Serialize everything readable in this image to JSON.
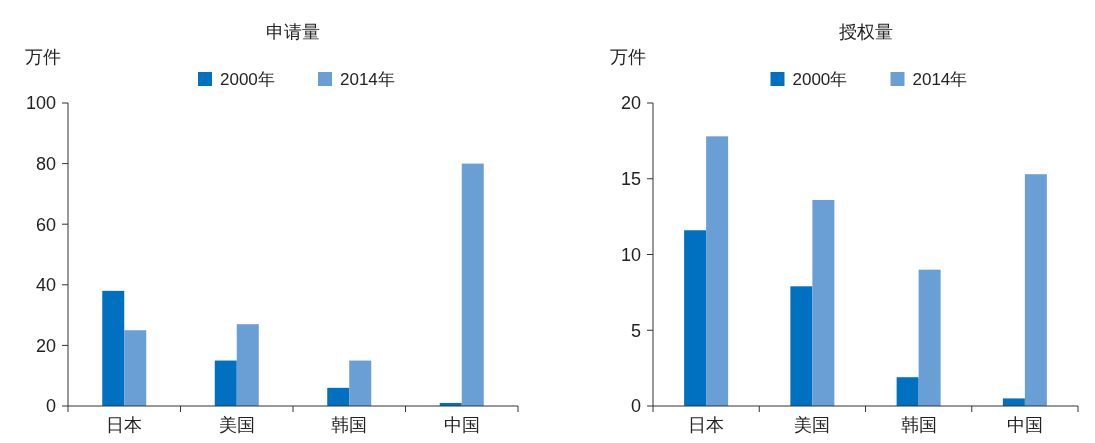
{
  "chart_data": [
    {
      "type": "bar",
      "title": "申请量",
      "ylabel": "万件",
      "categories": [
        "日本",
        "美国",
        "韩国",
        "中国"
      ],
      "series": [
        {
          "name": "2000年",
          "color": "#0070c0",
          "values": [
            38,
            15,
            6,
            1
          ]
        },
        {
          "name": "2014年",
          "color": "#6a9fd6",
          "values": [
            25,
            27,
            15,
            80
          ]
        }
      ],
      "ylim": [
        0,
        100
      ],
      "yticks": [
        0,
        20,
        40,
        60,
        80,
        100
      ],
      "legend": "top",
      "grid": false
    },
    {
      "type": "bar",
      "title": "授权量",
      "ylabel": "万件",
      "categories": [
        "日本",
        "美国",
        "韩国",
        "中国"
      ],
      "series": [
        {
          "name": "2000年",
          "color": "#0070c0",
          "values": [
            11.6,
            7.9,
            1.9,
            0.5
          ]
        },
        {
          "name": "2014年",
          "color": "#6a9fd6",
          "values": [
            17.8,
            13.6,
            9.0,
            15.3
          ]
        }
      ],
      "ylim": [
        0,
        20
      ],
      "yticks": [
        0,
        5,
        10,
        15,
        20
      ],
      "legend": "top",
      "grid": false
    }
  ]
}
